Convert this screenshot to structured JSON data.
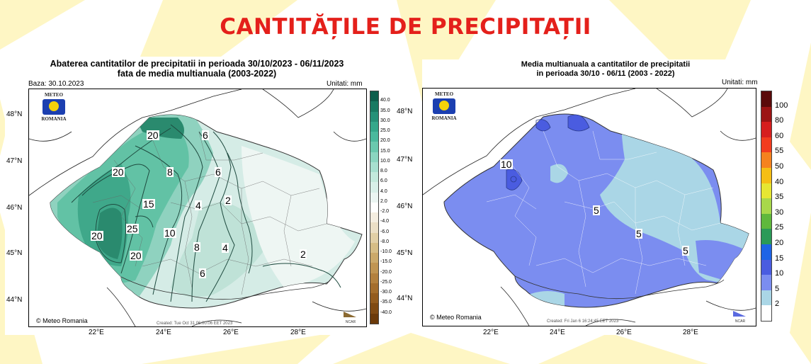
{
  "page": {
    "title": "CANTITĂȚILE DE PRECIPITAȚII"
  },
  "left_map": {
    "title_line1": "Abaterea cantitatilor de precipitatii in perioada 30/10/2023 - 06/11/2023",
    "title_line2": "fata de media multianuala (2003-2022)",
    "base_label": "Baza: 30.10.2023",
    "units_label": "Unitati: mm",
    "logo_top": "METEO",
    "logo_bottom": "ROMANIA",
    "lat_ticks": [
      "48°N",
      "47°N",
      "46°N",
      "45°N",
      "44°N"
    ],
    "lon_ticks": [
      "22°E",
      "24°E",
      "26°E",
      "28°E"
    ],
    "copyright": "© Meteo Romania",
    "created": "Created: Tue Oct 31 06:00:06 EET 2023",
    "ncar": "NCAR",
    "contour_labels": [
      "20",
      "6",
      "20",
      "8",
      "6",
      "15",
      "4",
      "2",
      "20",
      "25",
      "10",
      "8",
      "4",
      "20",
      "6",
      "2"
    ],
    "colorbar": {
      "labels": [
        "40.0",
        "35.0",
        "30.0",
        "25.0",
        "20.0",
        "15.0",
        "10.0",
        "8.0",
        "6.0",
        "4.0",
        "2.0",
        "-2.0",
        "-4.0",
        "-6.0",
        "-8.0",
        "-10.0",
        "-15.0",
        "-20.0",
        "-25.0",
        "-30.0",
        "-35.0",
        "-40.0"
      ],
      "colors": [
        "#0e5e4c",
        "#197a62",
        "#269178",
        "#35a88b",
        "#4bb99d",
        "#6ac8ae",
        "#8bd5c0",
        "#a7dfcf",
        "#c3e9dc",
        "#d8efe8",
        "#ebf5f2",
        "#ffffff",
        "#f4ede0",
        "#ebdfc6",
        "#e1cfa6",
        "#d6bd86",
        "#cba96a",
        "#c09552",
        "#b3813e",
        "#a46e2d",
        "#935c1f",
        "#7f4a13",
        "#6b3a0a"
      ]
    }
  },
  "right_map": {
    "title_line1": "Media multianuala a cantitatilor de precipitatii",
    "title_line2": "in perioada 30/10 - 06/11 (2003 - 2022)",
    "units_label": "Unitati: mm",
    "logo_top": "METEO",
    "logo_bottom": "ROMANIA",
    "lat_ticks": [
      "48°N",
      "47°N",
      "46°N",
      "45°N",
      "44°N"
    ],
    "lon_ticks": [
      "22°E",
      "24°E",
      "26°E",
      "28°E"
    ],
    "copyright": "© Meteo Romania",
    "created": "Created: Fri Jan 6 16:24:45 EET 2023",
    "ncar": "NCAR",
    "contour_labels": [
      "10",
      "5",
      "5",
      "5"
    ],
    "colorbar": {
      "labels": [
        "100",
        "80",
        "60",
        "55",
        "50",
        "40",
        "35",
        "30",
        "25",
        "20",
        "15",
        "10",
        "5",
        "2"
      ],
      "colors": [
        "#5a0a0a",
        "#9c1414",
        "#d61e1e",
        "#f23c1e",
        "#f5821e",
        "#f5be14",
        "#e6e632",
        "#a8d84a",
        "#5fb83c",
        "#2b9a58",
        "#1e64e6",
        "#4a5ce0",
        "#7b8df0",
        "#aad6e6",
        "#ffffff"
      ]
    }
  }
}
